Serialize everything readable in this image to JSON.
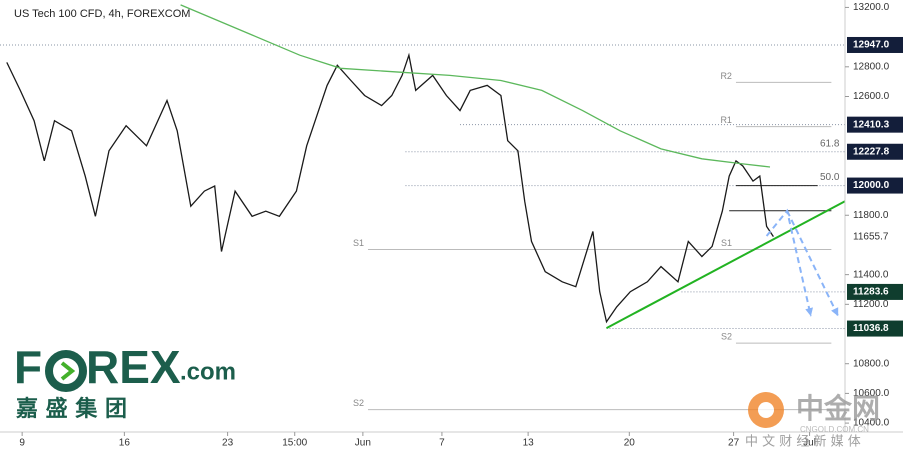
{
  "chart_data": {
    "type": "line",
    "title": "US Tech 100 CFD, 4h, FOREXCOM",
    "xlim": [
      0,
      248
    ],
    "xticks": [
      {
        "value": 6.5,
        "label": "9"
      },
      {
        "value": 36.5,
        "label": "16"
      },
      {
        "value": 66.8,
        "label": "23"
      },
      {
        "value": 86.5,
        "label": "15:00"
      },
      {
        "value": 106.5,
        "label": "Jun"
      },
      {
        "value": 129.7,
        "label": "7"
      },
      {
        "value": 155,
        "label": "13"
      },
      {
        "value": 184.7,
        "label": "20"
      },
      {
        "value": 215.3,
        "label": "27"
      },
      {
        "value": 237.6,
        "label": "Jul"
      }
    ],
    "ylim": [
      10340,
      13250
    ],
    "yticks": [
      {
        "value": 13200,
        "label": "13200.0"
      },
      {
        "value": 12800,
        "label": "12800.0"
      },
      {
        "value": 12600,
        "label": "12600.0"
      },
      {
        "value": 11800,
        "label": "11800.0"
      },
      {
        "value": 11400,
        "label": "11400.0"
      },
      {
        "value": 11200,
        "label": "11200.0"
      },
      {
        "value": 10800,
        "label": "10800.0"
      },
      {
        "value": 10600,
        "label": "10600.0"
      },
      {
        "value": 10400,
        "label": "10400.0"
      }
    ],
    "series": [
      {
        "color": "#1a1a1a",
        "x": [
          2,
          6,
          10,
          13,
          16,
          21,
          25,
          28,
          32,
          37,
          43,
          49,
          52,
          56,
          60,
          63,
          65,
          69,
          74,
          78,
          82,
          87,
          90,
          93,
          96,
          99,
          103,
          107,
          112,
          115,
          118,
          120,
          122,
          127,
          131,
          135,
          138,
          143,
          147,
          149,
          152,
          154,
          156,
          160,
          165,
          169,
          174,
          176,
          178,
          181,
          185,
          190,
          194,
          199,
          202,
          206,
          209,
          212,
          214,
          216,
          218,
          221,
          223,
          225,
          227
        ],
        "values": [
          12830,
          12640,
          12437,
          12166,
          12437,
          12369,
          12064,
          11793,
          12234,
          12403,
          12268,
          12573,
          12369,
          11861,
          11963,
          11997,
          11556,
          11963,
          11793,
          11827,
          11793,
          11963,
          12268,
          12471,
          12675,
          12810,
          12708,
          12607,
          12539,
          12607,
          12742,
          12878,
          12641,
          12742,
          12607,
          12505,
          12641,
          12675,
          12607,
          12302,
          12234,
          11895,
          11624,
          11420,
          11352,
          11319,
          11691,
          11285,
          11082,
          11183,
          11285,
          11352,
          11454,
          11352,
          11624,
          11522,
          11590,
          11827,
          12064,
          12166,
          12132,
          12030,
          12064,
          11725,
          11656
        ]
      },
      {
        "color": "#5cb85c",
        "x": [
          53,
          74,
          88,
          100,
          118,
          132,
          147,
          159,
          171,
          182,
          194,
          206,
          218,
          226
        ],
        "values": [
          13217,
          13014,
          12878,
          12790,
          12763,
          12742,
          12708,
          12641,
          12505,
          12369,
          12247,
          12180,
          12146,
          12125
        ]
      }
    ],
    "price_labels": [
      {
        "value": 12947,
        "label": "12947.0",
        "color": "#131e3a",
        "from": 0
      },
      {
        "value": 12410.3,
        "label": "12410.3",
        "color": "#131e3a",
        "from": 135
      },
      {
        "value": 12227.8,
        "label": "12227.8",
        "color": "#131e3a",
        "from": 119
      },
      {
        "value": 12000,
        "label": "12000.0",
        "color": "#131e3a",
        "from": 119
      },
      {
        "value": 11655.7,
        "label": "11655.7"
      },
      {
        "value": 11283.6,
        "label": "11283.6",
        "color": "#0f3d2e",
        "from": 200
      },
      {
        "value": 11036.8,
        "label": "11036.8",
        "color": "#0f3d2e",
        "from": 178
      }
    ],
    "fib": [
      {
        "label": "61.8",
        "value": 12227.8
      },
      {
        "label": "50.0",
        "value": 12000
      }
    ],
    "pivots": [
      {
        "label": "R2",
        "value": 12695,
        "x": [
          216,
          244
        ]
      },
      {
        "label": "R1",
        "value": 12397,
        "x": [
          216,
          244
        ]
      },
      {
        "label": "S1",
        "value": 11569,
        "x": [
          216,
          244
        ]
      },
      {
        "label": "S2",
        "value": 10939,
        "x": [
          216,
          244
        ]
      },
      {
        "label": "S1",
        "value": 11569,
        "x": [
          108,
          216
        ]
      },
      {
        "label": "S2",
        "value": 10491,
        "x": [
          108,
          244
        ]
      }
    ],
    "trendline": {
      "x": [
        178,
        248
      ],
      "values": [
        11040,
        11895
      ],
      "color": "#22b322"
    },
    "levels": [
      {
        "x": [
          216,
          240
        ],
        "values": [
          12000,
          12000
        ]
      },
      {
        "x": [
          214,
          244
        ],
        "values": [
          11830,
          11830
        ]
      }
    ],
    "arrows": [
      {
        "x": [
          225,
          231,
          238
        ],
        "values": [
          11660,
          11830,
          11120
        ]
      },
      {
        "x": [
          231,
          246
        ],
        "values": [
          11830,
          11120
        ]
      }
    ]
  },
  "logo": {
    "brand": "F",
    "brand_rest": "REX",
    "suffix": ".com",
    "chinese": "嘉 盛 集 团"
  },
  "watermark": {
    "name": "中金网",
    "url": "CNGOLD.COM.CN",
    "tagline": "中 文 财 经 新 媒 体"
  }
}
